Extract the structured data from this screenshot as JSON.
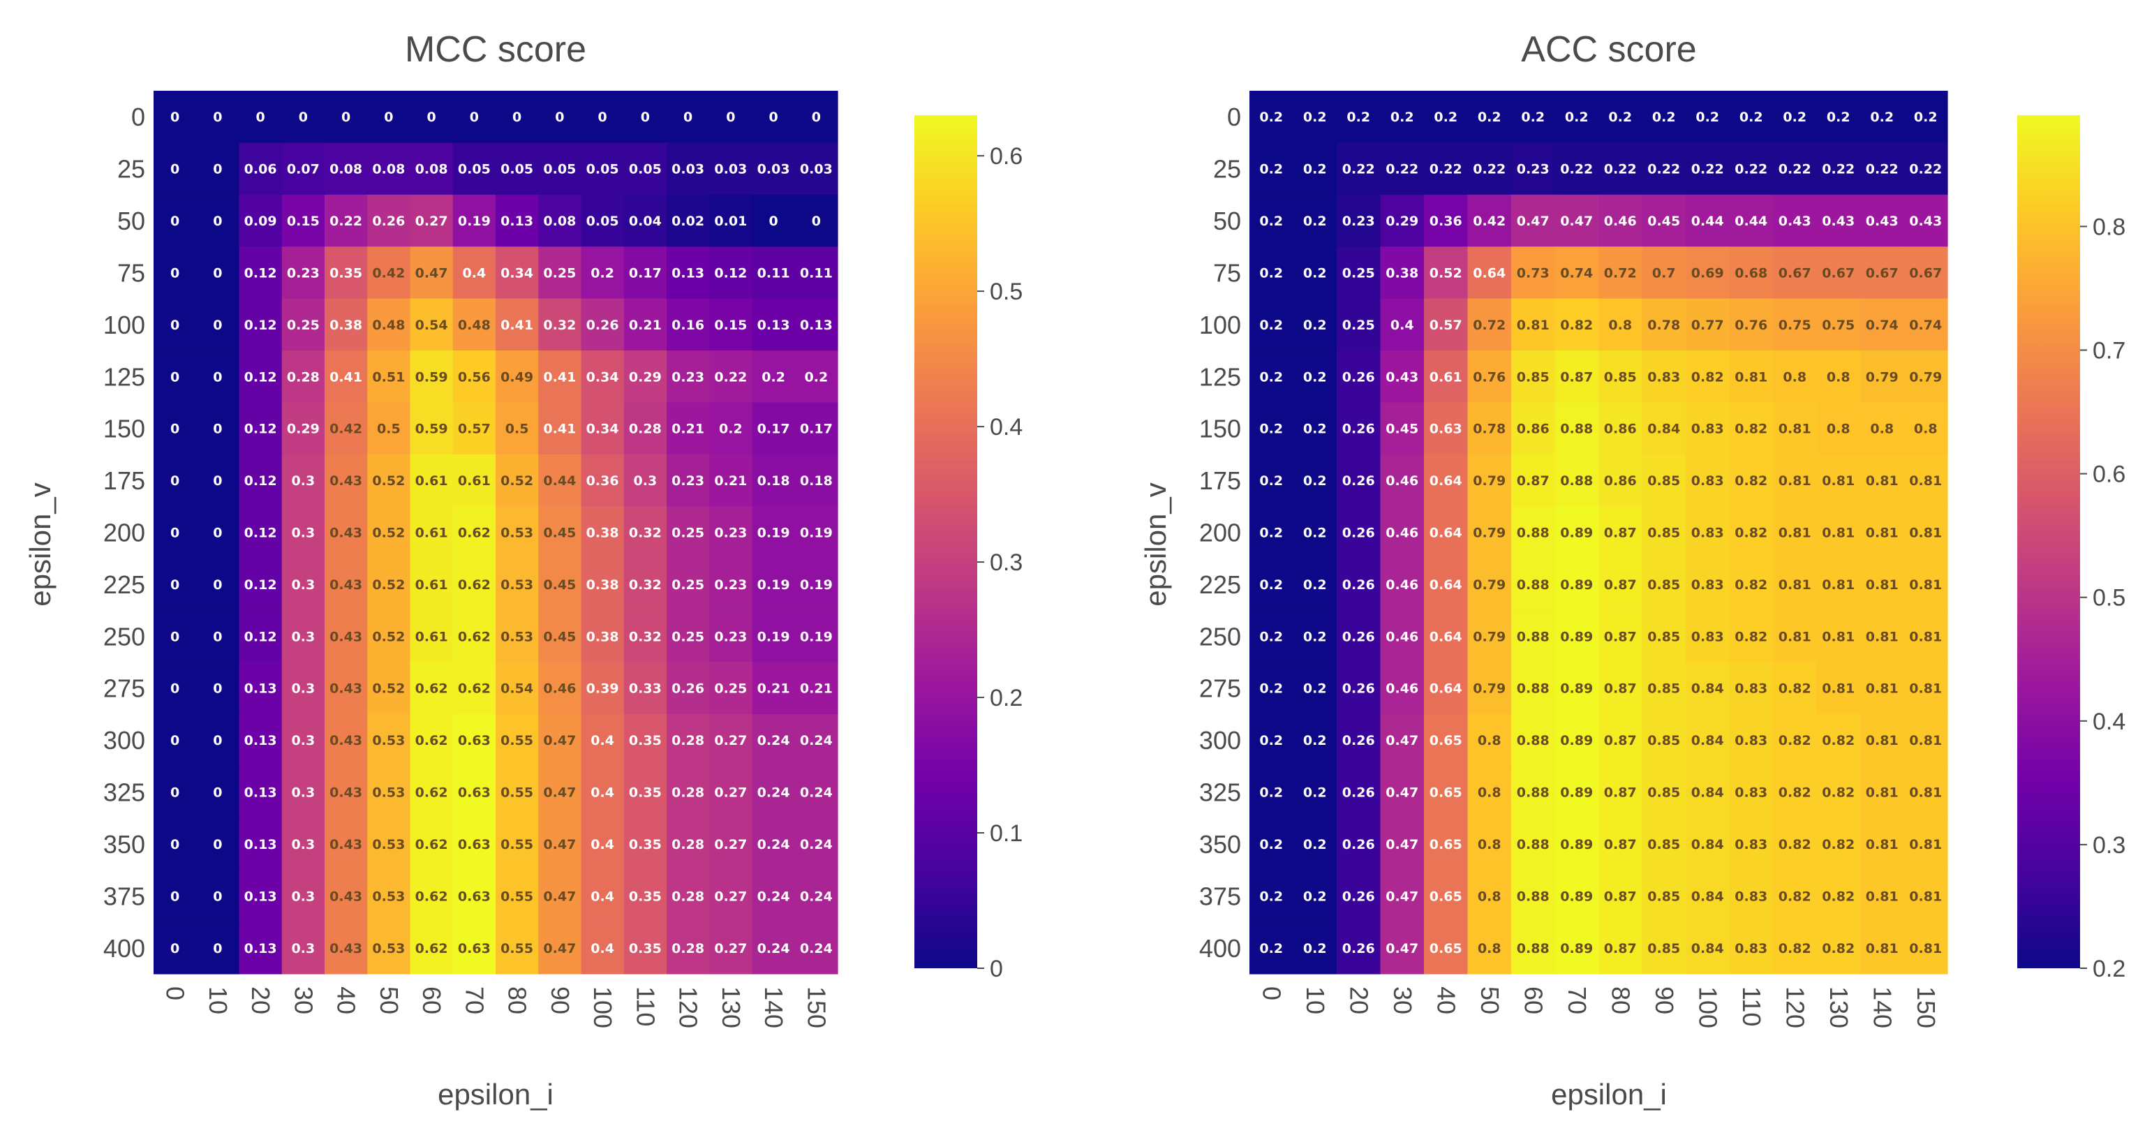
{
  "chart_data": [
    {
      "type": "heatmap",
      "title": "MCC score",
      "xlabel": "epsilon_i",
      "ylabel": "epsilon_v",
      "x": [
        "0",
        "10",
        "20",
        "30",
        "40",
        "50",
        "60",
        "70",
        "80",
        "90",
        "100",
        "110",
        "120",
        "130",
        "140",
        "150"
      ],
      "y": [
        "0",
        "25",
        "50",
        "75",
        "100",
        "125",
        "150",
        "175",
        "200",
        "225",
        "250",
        "275",
        "300",
        "325",
        "350",
        "375",
        "400"
      ],
      "z": [
        [
          "0",
          "0",
          "0",
          "0",
          "0",
          "0",
          "0",
          "0",
          "0",
          "0",
          "0",
          "0",
          "0",
          "0",
          "0",
          "0"
        ],
        [
          "0",
          "0",
          "0.06",
          "0.07",
          "0.08",
          "0.08",
          "0.08",
          "0.05",
          "0.05",
          "0.05",
          "0.05",
          "0.05",
          "0.03",
          "0.03",
          "0.03",
          "0.03"
        ],
        [
          "0",
          "0",
          "0.09",
          "0.15",
          "0.22",
          "0.26",
          "0.27",
          "0.19",
          "0.13",
          "0.08",
          "0.05",
          "0.04",
          "0.02",
          "0.01",
          "0",
          "0"
        ],
        [
          "0",
          "0",
          "0.12",
          "0.23",
          "0.35",
          "0.42",
          "0.47",
          "0.4",
          "0.34",
          "0.25",
          "0.2",
          "0.17",
          "0.13",
          "0.12",
          "0.11",
          "0.11"
        ],
        [
          "0",
          "0",
          "0.12",
          "0.25",
          "0.38",
          "0.48",
          "0.54",
          "0.48",
          "0.41",
          "0.32",
          "0.26",
          "0.21",
          "0.16",
          "0.15",
          "0.13",
          "0.13"
        ],
        [
          "0",
          "0",
          "0.12",
          "0.28",
          "0.41",
          "0.51",
          "0.59",
          "0.56",
          "0.49",
          "0.41",
          "0.34",
          "0.29",
          "0.23",
          "0.22",
          "0.2",
          "0.2"
        ],
        [
          "0",
          "0",
          "0.12",
          "0.29",
          "0.42",
          "0.5",
          "0.59",
          "0.57",
          "0.5",
          "0.41",
          "0.34",
          "0.28",
          "0.21",
          "0.2",
          "0.17",
          "0.17"
        ],
        [
          "0",
          "0",
          "0.12",
          "0.3",
          "0.43",
          "0.52",
          "0.61",
          "0.61",
          "0.52",
          "0.44",
          "0.36",
          "0.3",
          "0.23",
          "0.21",
          "0.18",
          "0.18"
        ],
        [
          "0",
          "0",
          "0.12",
          "0.3",
          "0.43",
          "0.52",
          "0.61",
          "0.62",
          "0.53",
          "0.45",
          "0.38",
          "0.32",
          "0.25",
          "0.23",
          "0.19",
          "0.19"
        ],
        [
          "0",
          "0",
          "0.12",
          "0.3",
          "0.43",
          "0.52",
          "0.61",
          "0.62",
          "0.53",
          "0.45",
          "0.38",
          "0.32",
          "0.25",
          "0.23",
          "0.19",
          "0.19"
        ],
        [
          "0",
          "0",
          "0.12",
          "0.3",
          "0.43",
          "0.52",
          "0.61",
          "0.62",
          "0.53",
          "0.45",
          "0.38",
          "0.32",
          "0.25",
          "0.23",
          "0.19",
          "0.19"
        ],
        [
          "0",
          "0",
          "0.13",
          "0.3",
          "0.43",
          "0.52",
          "0.62",
          "0.62",
          "0.54",
          "0.46",
          "0.39",
          "0.33",
          "0.26",
          "0.25",
          "0.21",
          "0.21"
        ],
        [
          "0",
          "0",
          "0.13",
          "0.3",
          "0.43",
          "0.53",
          "0.62",
          "0.63",
          "0.55",
          "0.47",
          "0.4",
          "0.35",
          "0.28",
          "0.27",
          "0.24",
          "0.24"
        ],
        [
          "0",
          "0",
          "0.13",
          "0.3",
          "0.43",
          "0.53",
          "0.62",
          "0.63",
          "0.55",
          "0.47",
          "0.4",
          "0.35",
          "0.28",
          "0.27",
          "0.24",
          "0.24"
        ],
        [
          "0",
          "0",
          "0.13",
          "0.3",
          "0.43",
          "0.53",
          "0.62",
          "0.63",
          "0.55",
          "0.47",
          "0.4",
          "0.35",
          "0.28",
          "0.27",
          "0.24",
          "0.24"
        ],
        [
          "0",
          "0",
          "0.13",
          "0.3",
          "0.43",
          "0.53",
          "0.62",
          "0.63",
          "0.55",
          "0.47",
          "0.4",
          "0.35",
          "0.28",
          "0.27",
          "0.24",
          "0.24"
        ],
        [
          "0",
          "0",
          "0.13",
          "0.3",
          "0.43",
          "0.53",
          "0.62",
          "0.63",
          "0.55",
          "0.47",
          "0.4",
          "0.35",
          "0.28",
          "0.27",
          "0.24",
          "0.24"
        ]
      ],
      "zmin": 0,
      "zmax": 0.63,
      "colorbar_ticks": [
        "0",
        "0.1",
        "0.2",
        "0.3",
        "0.4",
        "0.5",
        "0.6"
      ],
      "colorscale": "plasma"
    },
    {
      "type": "heatmap",
      "title": "ACC score",
      "xlabel": "epsilon_i",
      "ylabel": "epsilon_v",
      "x": [
        "0",
        "10",
        "20",
        "30",
        "40",
        "50",
        "60",
        "70",
        "80",
        "90",
        "100",
        "110",
        "120",
        "130",
        "140",
        "150"
      ],
      "y": [
        "0",
        "25",
        "50",
        "75",
        "100",
        "125",
        "150",
        "175",
        "200",
        "225",
        "250",
        "275",
        "300",
        "325",
        "350",
        "375",
        "400"
      ],
      "z": [
        [
          "0.2",
          "0.2",
          "0.2",
          "0.2",
          "0.2",
          "0.2",
          "0.2",
          "0.2",
          "0.2",
          "0.2",
          "0.2",
          "0.2",
          "0.2",
          "0.2",
          "0.2",
          "0.2"
        ],
        [
          "0.2",
          "0.2",
          "0.22",
          "0.22",
          "0.22",
          "0.22",
          "0.23",
          "0.22",
          "0.22",
          "0.22",
          "0.22",
          "0.22",
          "0.22",
          "0.22",
          "0.22",
          "0.22"
        ],
        [
          "0.2",
          "0.2",
          "0.23",
          "0.29",
          "0.36",
          "0.42",
          "0.47",
          "0.47",
          "0.46",
          "0.45",
          "0.44",
          "0.44",
          "0.43",
          "0.43",
          "0.43",
          "0.43"
        ],
        [
          "0.2",
          "0.2",
          "0.25",
          "0.38",
          "0.52",
          "0.64",
          "0.73",
          "0.74",
          "0.72",
          "0.7",
          "0.69",
          "0.68",
          "0.67",
          "0.67",
          "0.67",
          "0.67"
        ],
        [
          "0.2",
          "0.2",
          "0.25",
          "0.4",
          "0.57",
          "0.72",
          "0.81",
          "0.82",
          "0.8",
          "0.78",
          "0.77",
          "0.76",
          "0.75",
          "0.75",
          "0.74",
          "0.74"
        ],
        [
          "0.2",
          "0.2",
          "0.26",
          "0.43",
          "0.61",
          "0.76",
          "0.85",
          "0.87",
          "0.85",
          "0.83",
          "0.82",
          "0.81",
          "0.8",
          "0.8",
          "0.79",
          "0.79"
        ],
        [
          "0.2",
          "0.2",
          "0.26",
          "0.45",
          "0.63",
          "0.78",
          "0.86",
          "0.88",
          "0.86",
          "0.84",
          "0.83",
          "0.82",
          "0.81",
          "0.8",
          "0.8",
          "0.8"
        ],
        [
          "0.2",
          "0.2",
          "0.26",
          "0.46",
          "0.64",
          "0.79",
          "0.87",
          "0.88",
          "0.86",
          "0.85",
          "0.83",
          "0.82",
          "0.81",
          "0.81",
          "0.81",
          "0.81"
        ],
        [
          "0.2",
          "0.2",
          "0.26",
          "0.46",
          "0.64",
          "0.79",
          "0.88",
          "0.89",
          "0.87",
          "0.85",
          "0.83",
          "0.82",
          "0.81",
          "0.81",
          "0.81",
          "0.81"
        ],
        [
          "0.2",
          "0.2",
          "0.26",
          "0.46",
          "0.64",
          "0.79",
          "0.88",
          "0.89",
          "0.87",
          "0.85",
          "0.83",
          "0.82",
          "0.81",
          "0.81",
          "0.81",
          "0.81"
        ],
        [
          "0.2",
          "0.2",
          "0.26",
          "0.46",
          "0.64",
          "0.79",
          "0.88",
          "0.89",
          "0.87",
          "0.85",
          "0.83",
          "0.82",
          "0.81",
          "0.81",
          "0.81",
          "0.81"
        ],
        [
          "0.2",
          "0.2",
          "0.26",
          "0.46",
          "0.64",
          "0.79",
          "0.88",
          "0.89",
          "0.87",
          "0.85",
          "0.84",
          "0.83",
          "0.82",
          "0.81",
          "0.81",
          "0.81"
        ],
        [
          "0.2",
          "0.2",
          "0.26",
          "0.47",
          "0.65",
          "0.8",
          "0.88",
          "0.89",
          "0.87",
          "0.85",
          "0.84",
          "0.83",
          "0.82",
          "0.82",
          "0.81",
          "0.81"
        ],
        [
          "0.2",
          "0.2",
          "0.26",
          "0.47",
          "0.65",
          "0.8",
          "0.88",
          "0.89",
          "0.87",
          "0.85",
          "0.84",
          "0.83",
          "0.82",
          "0.82",
          "0.81",
          "0.81"
        ],
        [
          "0.2",
          "0.2",
          "0.26",
          "0.47",
          "0.65",
          "0.8",
          "0.88",
          "0.89",
          "0.87",
          "0.85",
          "0.84",
          "0.83",
          "0.82",
          "0.82",
          "0.81",
          "0.81"
        ],
        [
          "0.2",
          "0.2",
          "0.26",
          "0.47",
          "0.65",
          "0.8",
          "0.88",
          "0.89",
          "0.87",
          "0.85",
          "0.84",
          "0.83",
          "0.82",
          "0.82",
          "0.81",
          "0.81"
        ],
        [
          "0.2",
          "0.2",
          "0.26",
          "0.47",
          "0.65",
          "0.8",
          "0.88",
          "0.89",
          "0.87",
          "0.85",
          "0.84",
          "0.83",
          "0.82",
          "0.82",
          "0.81",
          "0.81"
        ]
      ],
      "zmin": 0.2,
      "zmax": 0.89,
      "colorbar_ticks": [
        "0.2",
        "0.3",
        "0.4",
        "0.5",
        "0.6",
        "0.7",
        "0.8"
      ],
      "colorscale": "plasma"
    }
  ]
}
